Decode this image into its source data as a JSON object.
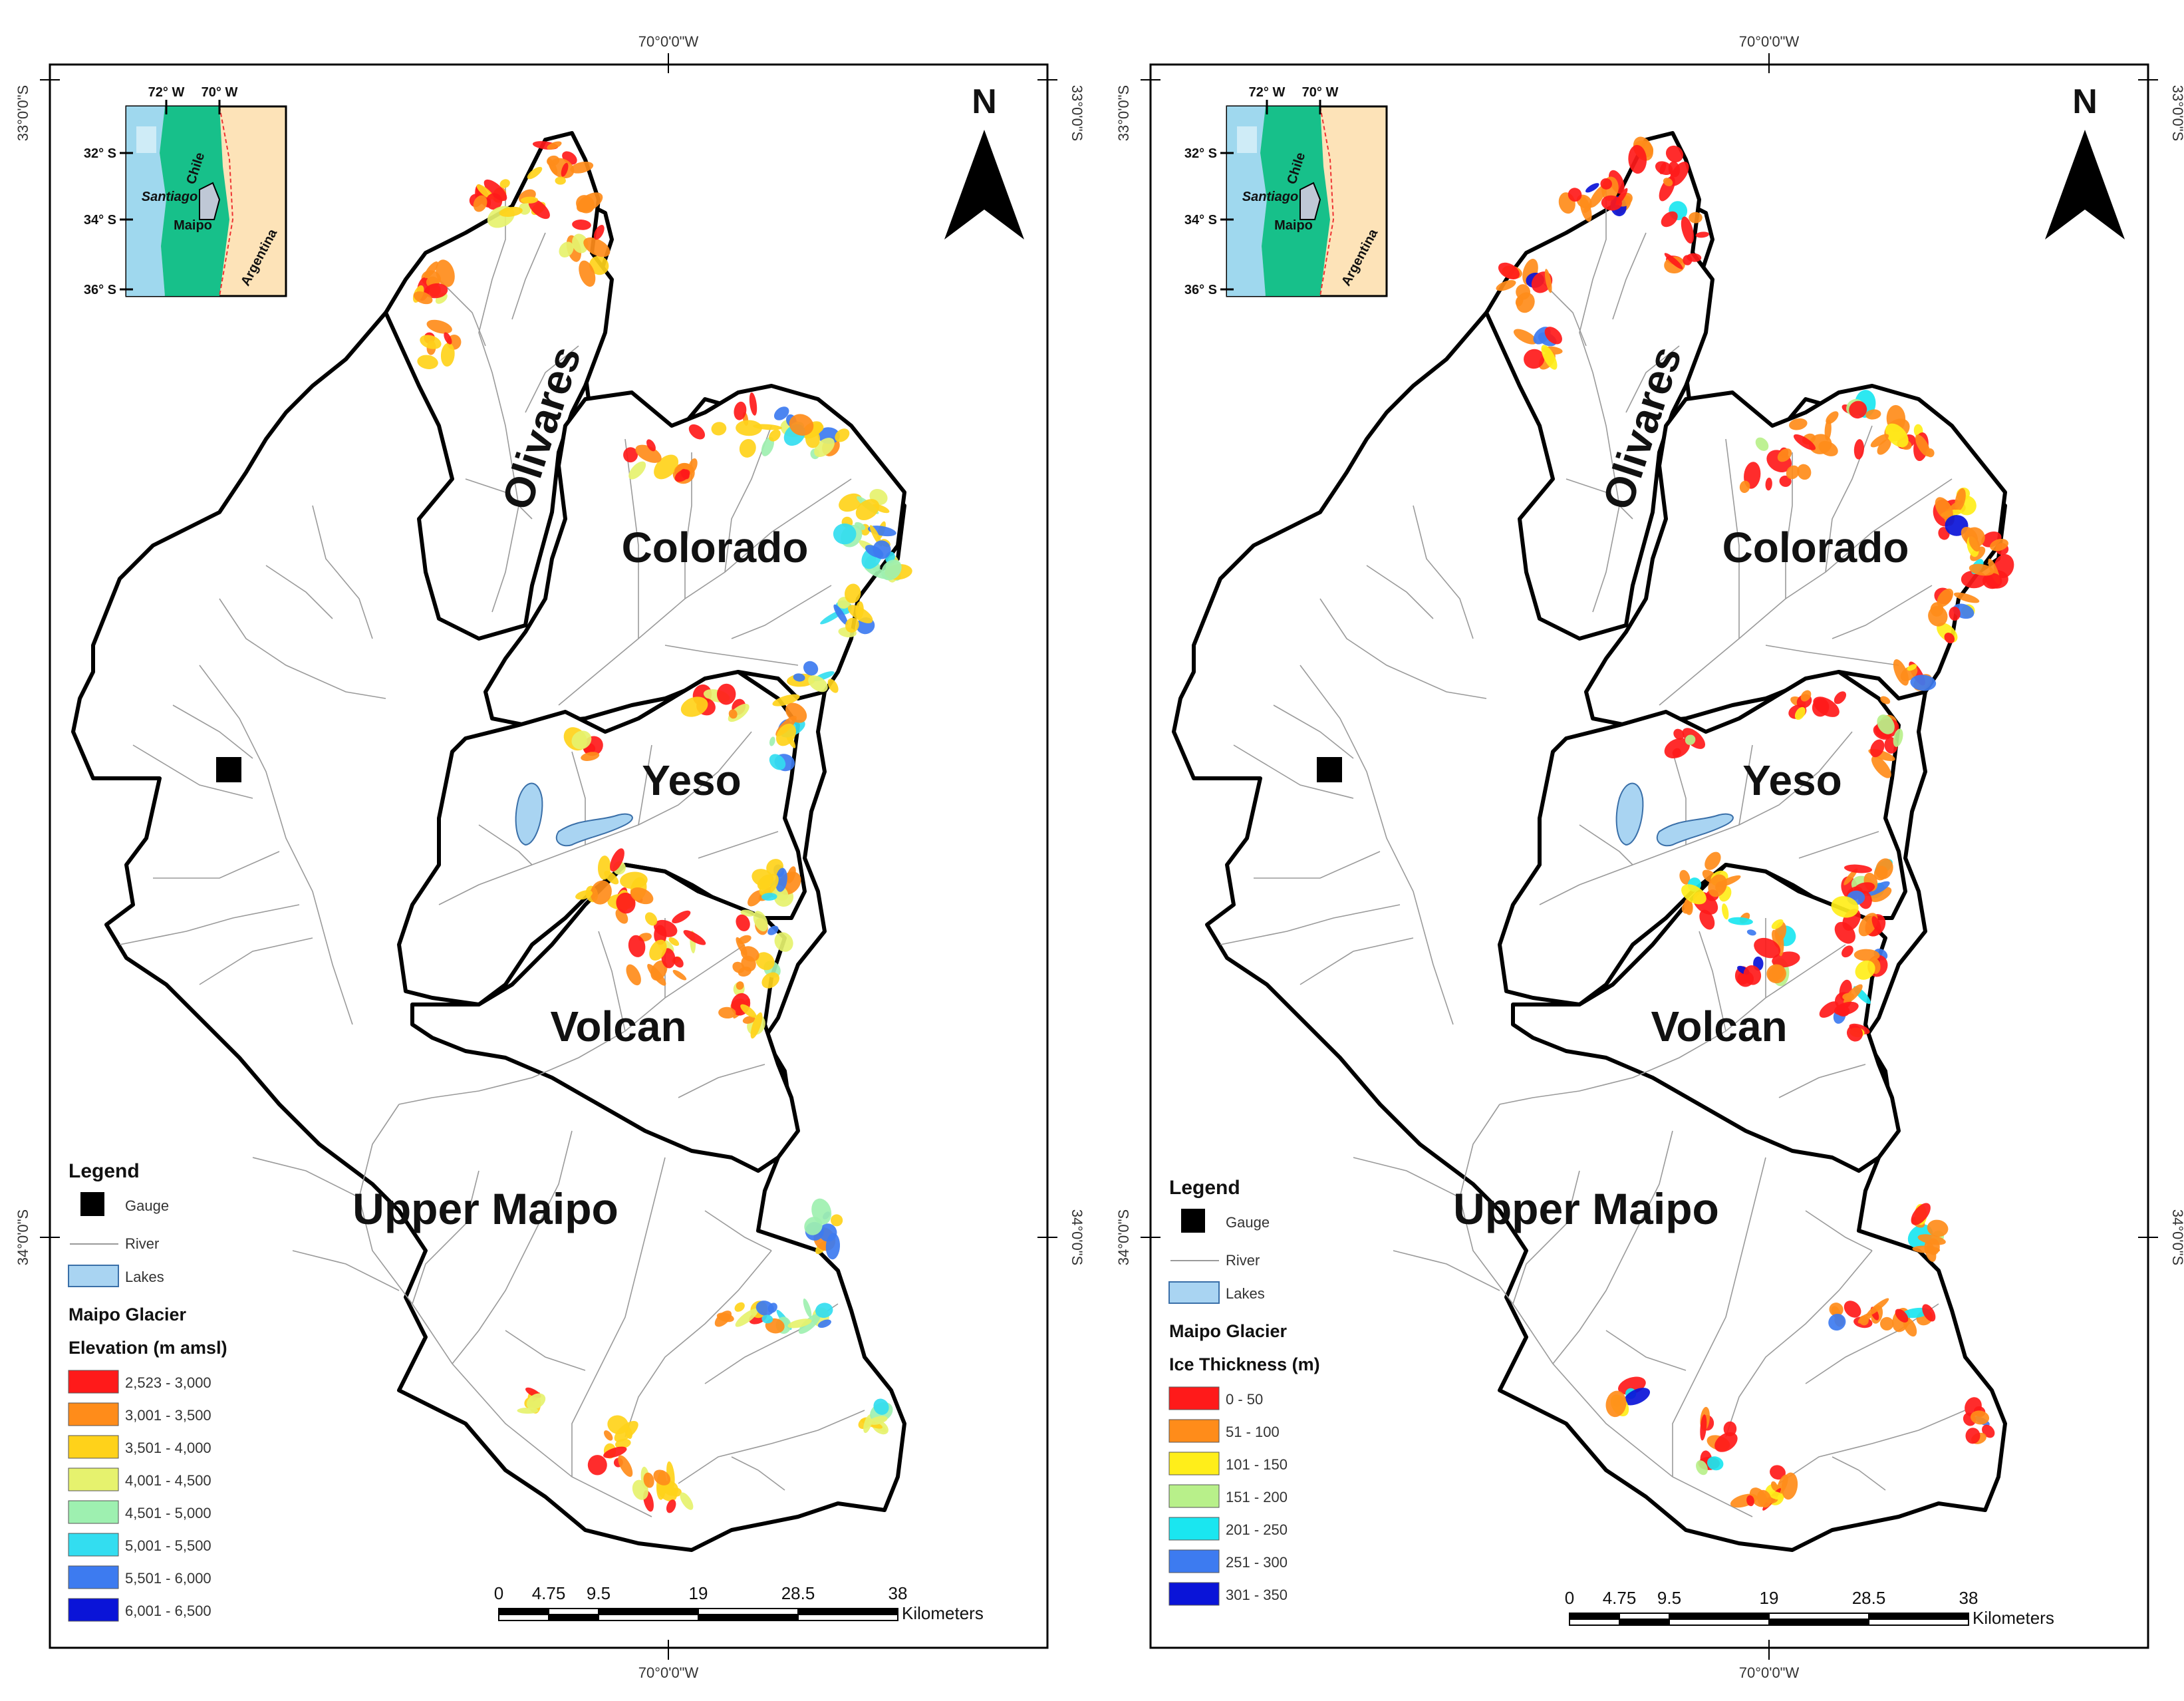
{
  "grid_labels": {
    "lon_center": "70°0'0\"W",
    "lat_top": "33°0'0\"S",
    "lat_mid": "34°0'0\"S"
  },
  "inset": {
    "lon_labels": [
      "72° W",
      "70° W"
    ],
    "lat_labels": [
      "32° S",
      "34° S",
      "36° S"
    ],
    "places": {
      "chile": "Chile",
      "santiago": "Santiago",
      "maipo": "Maipo",
      "argentina": "Argentina"
    },
    "colors": {
      "ocean": "#9fd8ee",
      "chile": "#17c08a",
      "argentina": "#fde3b8"
    }
  },
  "north_label": "N",
  "basins": {
    "olivares": "Olivares",
    "colorado": "Colorado",
    "yeso": "Yeso",
    "volcan": "Volcan",
    "upper_maipo": "Upper Maipo"
  },
  "legend": {
    "title": "Legend",
    "gauge": "Gauge",
    "river": "River",
    "lakes": "Lakes",
    "lake_color": "#a9d4f2",
    "glacier_title": "Maipo Glacier"
  },
  "panels": [
    {
      "variable_title": "Elevation (m amsl)",
      "classes": [
        {
          "label": "2,523 - 3,000",
          "color": "#ff1a1a"
        },
        {
          "label": "3,001 - 3,500",
          "color": "#ff8c1a"
        },
        {
          "label": "3,501 - 4,000",
          "color": "#ffd21a"
        },
        {
          "label": "4,001 - 4,500",
          "color": "#e6f26e"
        },
        {
          "label": "4,501 - 5,000",
          "color": "#9ef0b0"
        },
        {
          "label": "5,001 - 5,500",
          "color": "#33ddf0"
        },
        {
          "label": "5,501 - 6,000",
          "color": "#3d7bf0"
        },
        {
          "label": "6,001 - 6,500",
          "color": "#0a14d8"
        }
      ]
    },
    {
      "variable_title": "Ice Thickness (m)",
      "classes": [
        {
          "label": "0 - 50",
          "color": "#ff1a1a"
        },
        {
          "label": "51 - 100",
          "color": "#ff8c1a"
        },
        {
          "label": "101 - 150",
          "color": "#ffee1a"
        },
        {
          "label": "151 - 200",
          "color": "#b8f08a"
        },
        {
          "label": "201 - 250",
          "color": "#1ae6f0"
        },
        {
          "label": "251 - 300",
          "color": "#3d7bf0"
        },
        {
          "label": "301 - 350",
          "color": "#0a14d8"
        }
      ]
    }
  ],
  "scale_bar": {
    "ticks": [
      "0",
      "4.75",
      "9.5",
      "19",
      "28.5",
      "38"
    ],
    "unit": "Kilometers"
  }
}
